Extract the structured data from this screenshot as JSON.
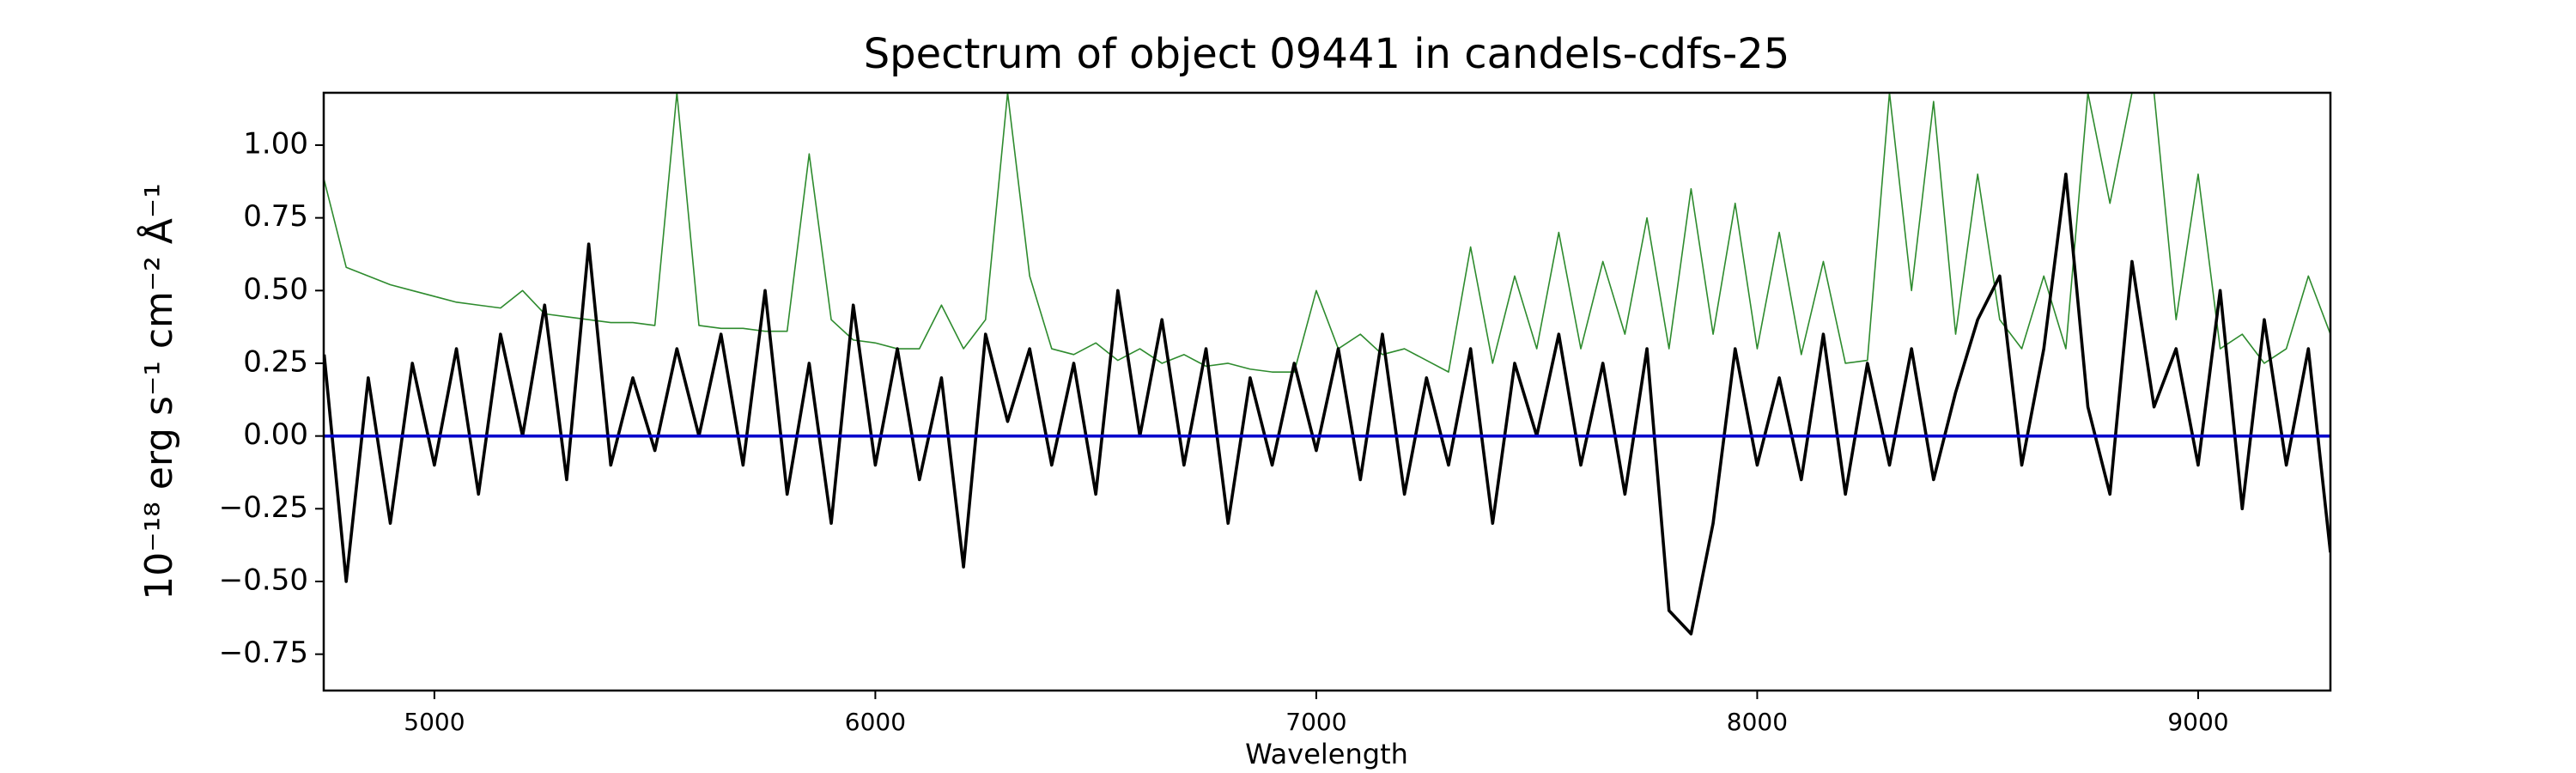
{
  "chart_data": {
    "type": "line",
    "title": "Spectrum of object 09441 in candels-cdfs-25",
    "x_label": "Wavelength",
    "y_label": "10⁻¹⁸ erg s⁻¹ cm⁻² Å⁻¹",
    "xlim": [
      4749,
      9300
    ],
    "ylim": [
      -0.875,
      1.18
    ],
    "xticks": [
      5000,
      6000,
      7000,
      8000,
      9000
    ],
    "yticks": [
      {
        "value": -0.75,
        "label": "−0.75"
      },
      {
        "value": -0.5,
        "label": "−0.50"
      },
      {
        "value": -0.25,
        "label": "−0.25"
      },
      {
        "value": 0,
        "label": "0.00"
      },
      {
        "value": 0.25,
        "label": "0.25"
      },
      {
        "value": 0.5,
        "label": "0.50"
      },
      {
        "value": 0.75,
        "label": "0.75"
      },
      {
        "value": 1,
        "label": "1.00"
      }
    ],
    "x": [
      4750,
      4800,
      4850,
      4900,
      4950,
      5000,
      5050,
      5100,
      5150,
      5200,
      5250,
      5300,
      5350,
      5400,
      5450,
      5500,
      5550,
      5600,
      5650,
      5700,
      5750,
      5800,
      5850,
      5900,
      5950,
      6000,
      6050,
      6100,
      6150,
      6200,
      6250,
      6300,
      6350,
      6400,
      6450,
      6500,
      6550,
      6600,
      6650,
      6700,
      6750,
      6800,
      6850,
      6900,
      6950,
      7000,
      7050,
      7100,
      7150,
      7200,
      7250,
      7300,
      7350,
      7400,
      7450,
      7500,
      7550,
      7600,
      7650,
      7700,
      7750,
      7800,
      7850,
      7900,
      7950,
      8000,
      8050,
      8100,
      8150,
      8200,
      8250,
      8300,
      8350,
      8400,
      8450,
      8500,
      8550,
      8600,
      8650,
      8700,
      8750,
      8800,
      8850,
      8900,
      8950,
      9000,
      9050,
      9100,
      9150,
      9200,
      9250,
      9300
    ],
    "series": [
      {
        "color": "#2e8b2e",
        "width": 1.6,
        "values": [
          0.88,
          0.58,
          0.55,
          0.52,
          0.5,
          0.48,
          0.46,
          0.45,
          0.44,
          0.5,
          0.42,
          0.41,
          0.4,
          0.39,
          0.39,
          0.38,
          1.18,
          0.38,
          0.37,
          0.37,
          0.36,
          0.36,
          0.97,
          0.4,
          0.33,
          0.32,
          0.3,
          0.3,
          0.45,
          0.3,
          0.4,
          1.18,
          0.55,
          0.3,
          0.28,
          0.32,
          0.26,
          0.3,
          0.25,
          0.28,
          0.24,
          0.25,
          0.23,
          0.22,
          0.22,
          0.5,
          0.3,
          0.35,
          0.28,
          0.3,
          0.26,
          0.22,
          0.65,
          0.25,
          0.55,
          0.3,
          0.7,
          0.3,
          0.6,
          0.35,
          0.75,
          0.3,
          0.85,
          0.35,
          0.8,
          0.3,
          0.7,
          0.28,
          0.6,
          0.25,
          0.26,
          1.18,
          0.5,
          1.15,
          0.35,
          0.9,
          0.4,
          0.3,
          0.55,
          0.3,
          1.18,
          0.8,
          1.18,
          1.18,
          0.4,
          0.9,
          0.3,
          0.35,
          0.25,
          0.3,
          0.55,
          0.35
        ]
      },
      {
        "color": "#000000",
        "width": 3.6,
        "values": [
          0.28,
          -0.5,
          0.2,
          -0.3,
          0.25,
          -0.1,
          0.3,
          -0.2,
          0.35,
          0.0,
          0.45,
          -0.15,
          0.66,
          -0.1,
          0.2,
          -0.05,
          0.3,
          0.0,
          0.35,
          -0.1,
          0.5,
          -0.2,
          0.25,
          -0.3,
          0.45,
          -0.1,
          0.3,
          -0.15,
          0.2,
          -0.45,
          0.35,
          0.05,
          0.3,
          -0.1,
          0.25,
          -0.2,
          0.5,
          0.0,
          0.4,
          -0.1,
          0.3,
          -0.3,
          0.2,
          -0.1,
          0.25,
          -0.05,
          0.3,
          -0.15,
          0.35,
          -0.2,
          0.2,
          -0.1,
          0.3,
          -0.3,
          0.25,
          0.0,
          0.35,
          -0.1,
          0.25,
          -0.2,
          0.3,
          -0.6,
          -0.68,
          -0.3,
          0.3,
          -0.1,
          0.2,
          -0.15,
          0.35,
          -0.2,
          0.25,
          -0.1,
          0.3,
          -0.15,
          0.15,
          0.4,
          0.55,
          -0.1,
          0.3,
          0.9,
          0.1,
          -0.2,
          0.6,
          0.1,
          0.3,
          -0.1,
          0.5,
          -0.25,
          0.4,
          -0.1,
          0.3,
          -0.4
        ]
      },
      {
        "color": "#0000cc",
        "width": 3.6,
        "values": [
          0,
          0,
          0,
          0,
          0,
          0,
          0,
          0,
          0,
          0,
          0,
          0,
          0,
          0,
          0,
          0,
          0,
          0,
          0,
          0,
          0,
          0,
          0,
          0,
          0,
          0,
          0,
          0,
          0,
          0,
          0,
          0,
          0,
          0,
          0,
          0,
          0,
          0,
          0,
          0,
          0,
          0,
          0,
          0,
          0,
          0,
          0,
          0,
          0,
          0,
          0,
          0,
          0,
          0,
          0,
          0,
          0,
          0,
          0,
          0,
          0,
          0,
          0,
          0,
          0,
          0,
          0,
          0,
          0,
          0,
          0,
          0,
          0,
          0,
          0,
          0,
          0,
          0,
          0,
          0,
          0,
          0,
          0,
          0,
          0,
          0,
          0,
          0,
          0,
          0,
          0,
          0
        ]
      }
    ]
  }
}
